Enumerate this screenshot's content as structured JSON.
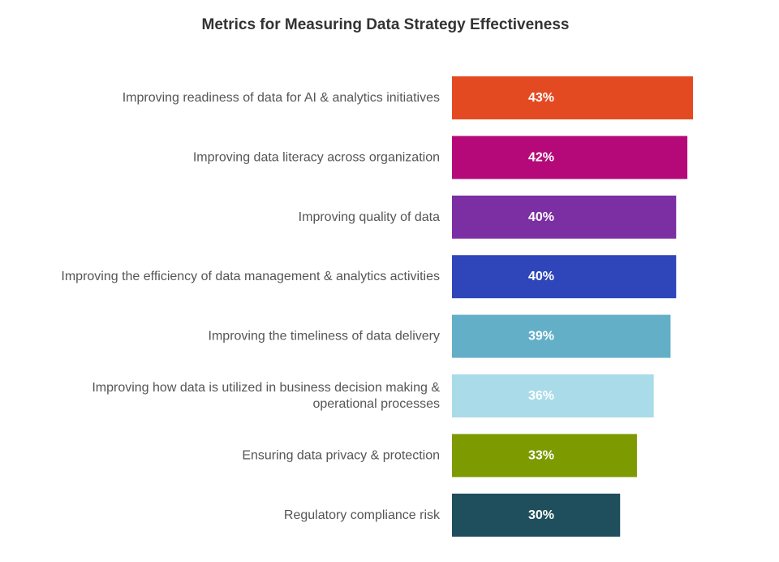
{
  "chart_data": {
    "type": "bar",
    "orientation": "horizontal",
    "title": "Metrics for Measuring Data Strategy Effectiveness",
    "xlabel": "",
    "ylabel": "",
    "xlim": [
      0,
      43
    ],
    "grid": false,
    "legend": "none",
    "value_suffix": "%",
    "categories": [
      [
        "Improving readiness of data for AI & analytics initiatives"
      ],
      [
        "Improving data literacy across organization"
      ],
      [
        "Improving quality of data"
      ],
      [
        "Improving the efficiency of data management & analytics activities"
      ],
      [
        "Improving the timeliness of data delivery"
      ],
      [
        "Improving how data is utilized in business decision making &",
        "operational processes"
      ],
      [
        "Ensuring data privacy & protection"
      ],
      [
        "Regulatory compliance risk"
      ]
    ],
    "values": [
      43,
      42,
      40,
      40,
      39,
      36,
      33,
      30
    ],
    "data_labels": [
      "43%",
      "42%",
      "40%",
      "40%",
      "39%",
      "36%",
      "33%",
      "30%"
    ],
    "colors": [
      "#E44A22",
      "#B5097A",
      "#7B2FA2",
      "#2E46B9",
      "#63AFC7",
      "#A9DBE8",
      "#7D9A00",
      "#1F4E5C"
    ]
  }
}
